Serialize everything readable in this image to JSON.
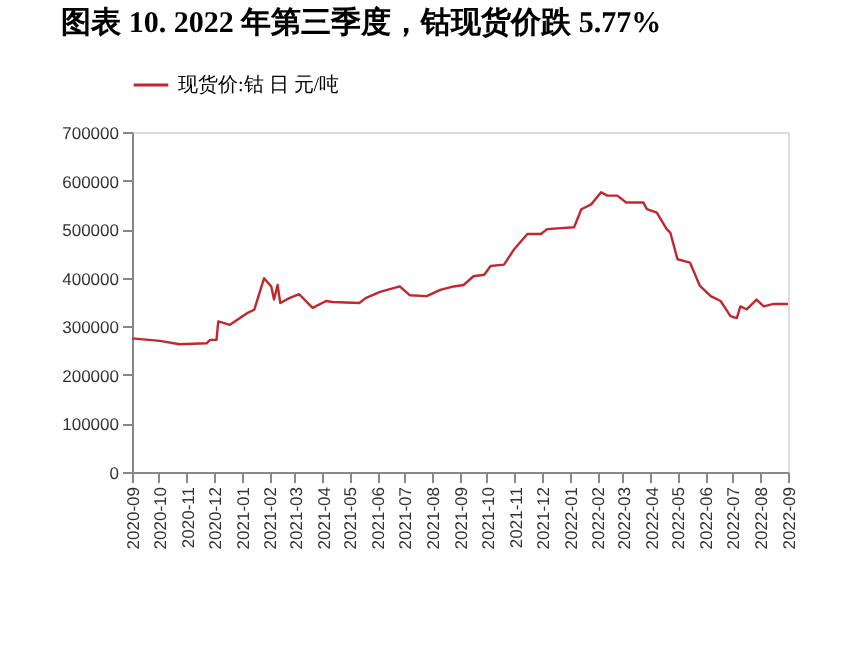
{
  "chart_data": {
    "type": "line",
    "title": "图表 10. 2022 年第三季度，钴现货价跌 5.77%",
    "x": [
      "2020-09-01",
      "2020-10-02",
      "2020-10-24",
      "2020-11-23",
      "2020-11-27",
      "2020-12-04",
      "2020-12-06",
      "2020-12-19",
      "2021-01-07",
      "2021-01-15",
      "2021-01-26",
      "2021-02-03",
      "2021-02-06",
      "2021-02-10",
      "2021-02-13",
      "2021-02-23",
      "2021-03-06",
      "2021-03-21",
      "2021-04-05",
      "2021-04-12",
      "2021-05-12",
      "2021-05-19",
      "2021-06-04",
      "2021-06-26",
      "2021-07-07",
      "2021-07-26",
      "2021-08-10",
      "2021-08-25",
      "2021-09-05",
      "2021-09-16",
      "2021-09-28",
      "2021-10-05",
      "2021-10-20",
      "2021-10-31",
      "2021-11-15",
      "2021-11-30",
      "2021-12-07",
      "2022-01-06",
      "2022-01-14",
      "2022-01-25",
      "2022-02-05",
      "2022-02-12",
      "2022-02-23",
      "2022-03-05",
      "2022-03-24",
      "2022-03-28",
      "2022-04-08",
      "2022-04-19",
      "2022-04-23",
      "2022-05-01",
      "2022-05-15",
      "2022-05-26",
      "2022-06-07",
      "2022-06-18",
      "2022-06-29",
      "2022-07-06",
      "2022-07-10",
      "2022-07-17",
      "2022-07-28",
      "2022-08-05",
      "2022-08-16",
      "2022-09-01"
    ],
    "series": [
      {
        "name": "现货价:钴 日 元/吨",
        "color": "#c0282e",
        "values": [
          275000,
          270000,
          263000,
          265000,
          272000,
          272000,
          310000,
          303000,
          327000,
          334000,
          399000,
          382000,
          355000,
          385000,
          348000,
          358000,
          366000,
          338000,
          352000,
          350000,
          348000,
          358000,
          371000,
          382000,
          364000,
          362000,
          375000,
          382000,
          385000,
          403000,
          406000,
          424000,
          427000,
          458000,
          490000,
          490000,
          500000,
          504000,
          541000,
          551000,
          576000,
          569000,
          569000,
          555000,
          555000,
          541000,
          534000,
          500000,
          493000,
          438000,
          431000,
          383000,
          362000,
          352000,
          321000,
          317000,
          341000,
          335000,
          355000,
          341000,
          346000,
          346000
        ]
      }
    ],
    "xlim": [
      "2020-09-01",
      "2022-09-01"
    ],
    "xticks": [
      {
        "value": "2020-09-01",
        "label": "2020-09"
      },
      {
        "value": "2020-10-01",
        "label": "2020-10"
      },
      {
        "value": "2020-11-01",
        "label": "2020-11"
      },
      {
        "value": "2020-12-01",
        "label": "2020-12"
      },
      {
        "value": "2021-01-01",
        "label": "2021-01"
      },
      {
        "value": "2021-02-01",
        "label": "2021-02"
      },
      {
        "value": "2021-03-01",
        "label": "2021-03"
      },
      {
        "value": "2021-04-01",
        "label": "2021-04"
      },
      {
        "value": "2021-05-01",
        "label": "2021-05"
      },
      {
        "value": "2021-06-01",
        "label": "2021-06"
      },
      {
        "value": "2021-07-01",
        "label": "2021-07"
      },
      {
        "value": "2021-08-01",
        "label": "2021-08"
      },
      {
        "value": "2021-09-01",
        "label": "2021-09"
      },
      {
        "value": "2021-10-01",
        "label": "2021-10"
      },
      {
        "value": "2021-11-01",
        "label": "2021-11"
      },
      {
        "value": "2021-12-01",
        "label": "2021-12"
      },
      {
        "value": "2022-01-01",
        "label": "2022-01"
      },
      {
        "value": "2022-02-01",
        "label": "2022-02"
      },
      {
        "value": "2022-03-01",
        "label": "2022-03"
      },
      {
        "value": "2022-04-01",
        "label": "2022-04"
      },
      {
        "value": "2022-05-01",
        "label": "2022-05"
      },
      {
        "value": "2022-06-01",
        "label": "2022-06"
      },
      {
        "value": "2022-07-01",
        "label": "2022-07"
      },
      {
        "value": "2022-08-01",
        "label": "2022-08"
      },
      {
        "value": "2022-09-01",
        "label": "2022-09"
      }
    ],
    "ylim": [
      0,
      700000
    ],
    "yticks": [
      0,
      100000,
      200000,
      300000,
      400000,
      500000,
      600000,
      700000
    ],
    "grid": false,
    "legend": "top",
    "marker": "none",
    "line_style": "solid"
  }
}
